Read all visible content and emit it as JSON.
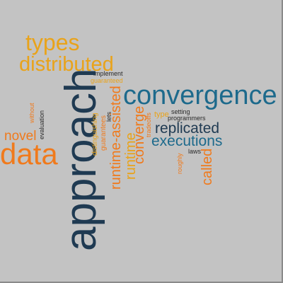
{
  "colors": {
    "background": "#c3c3c3",
    "orange": "#f07a1c",
    "amber": "#e9a31a",
    "navy": "#1f3a52",
    "blue": "#1d6a8c",
    "dark": "#2a2a2a"
  },
  "words": {
    "approach": "approach",
    "convergence": "convergence",
    "data": "data",
    "distributed": "distributed",
    "types": "types",
    "replicated": "replicated",
    "executions": "executions",
    "runtime_assisted": "runtime-assisted",
    "runtime": "runtime",
    "converge": "converge",
    "called": "called",
    "novel": "novel",
    "implement": "implement",
    "guaranteed": "guaranteed",
    "without": "without",
    "evaluation": "evaluation",
    "distinguishing": "distinguishing",
    "guarantees": "guarantees",
    "lets": "lets",
    "tradeoffs": "tradeoffs",
    "type": "type",
    "setting": "setting",
    "programmers": "programmers",
    "laws": "laws",
    "roughly": "roughly"
  }
}
